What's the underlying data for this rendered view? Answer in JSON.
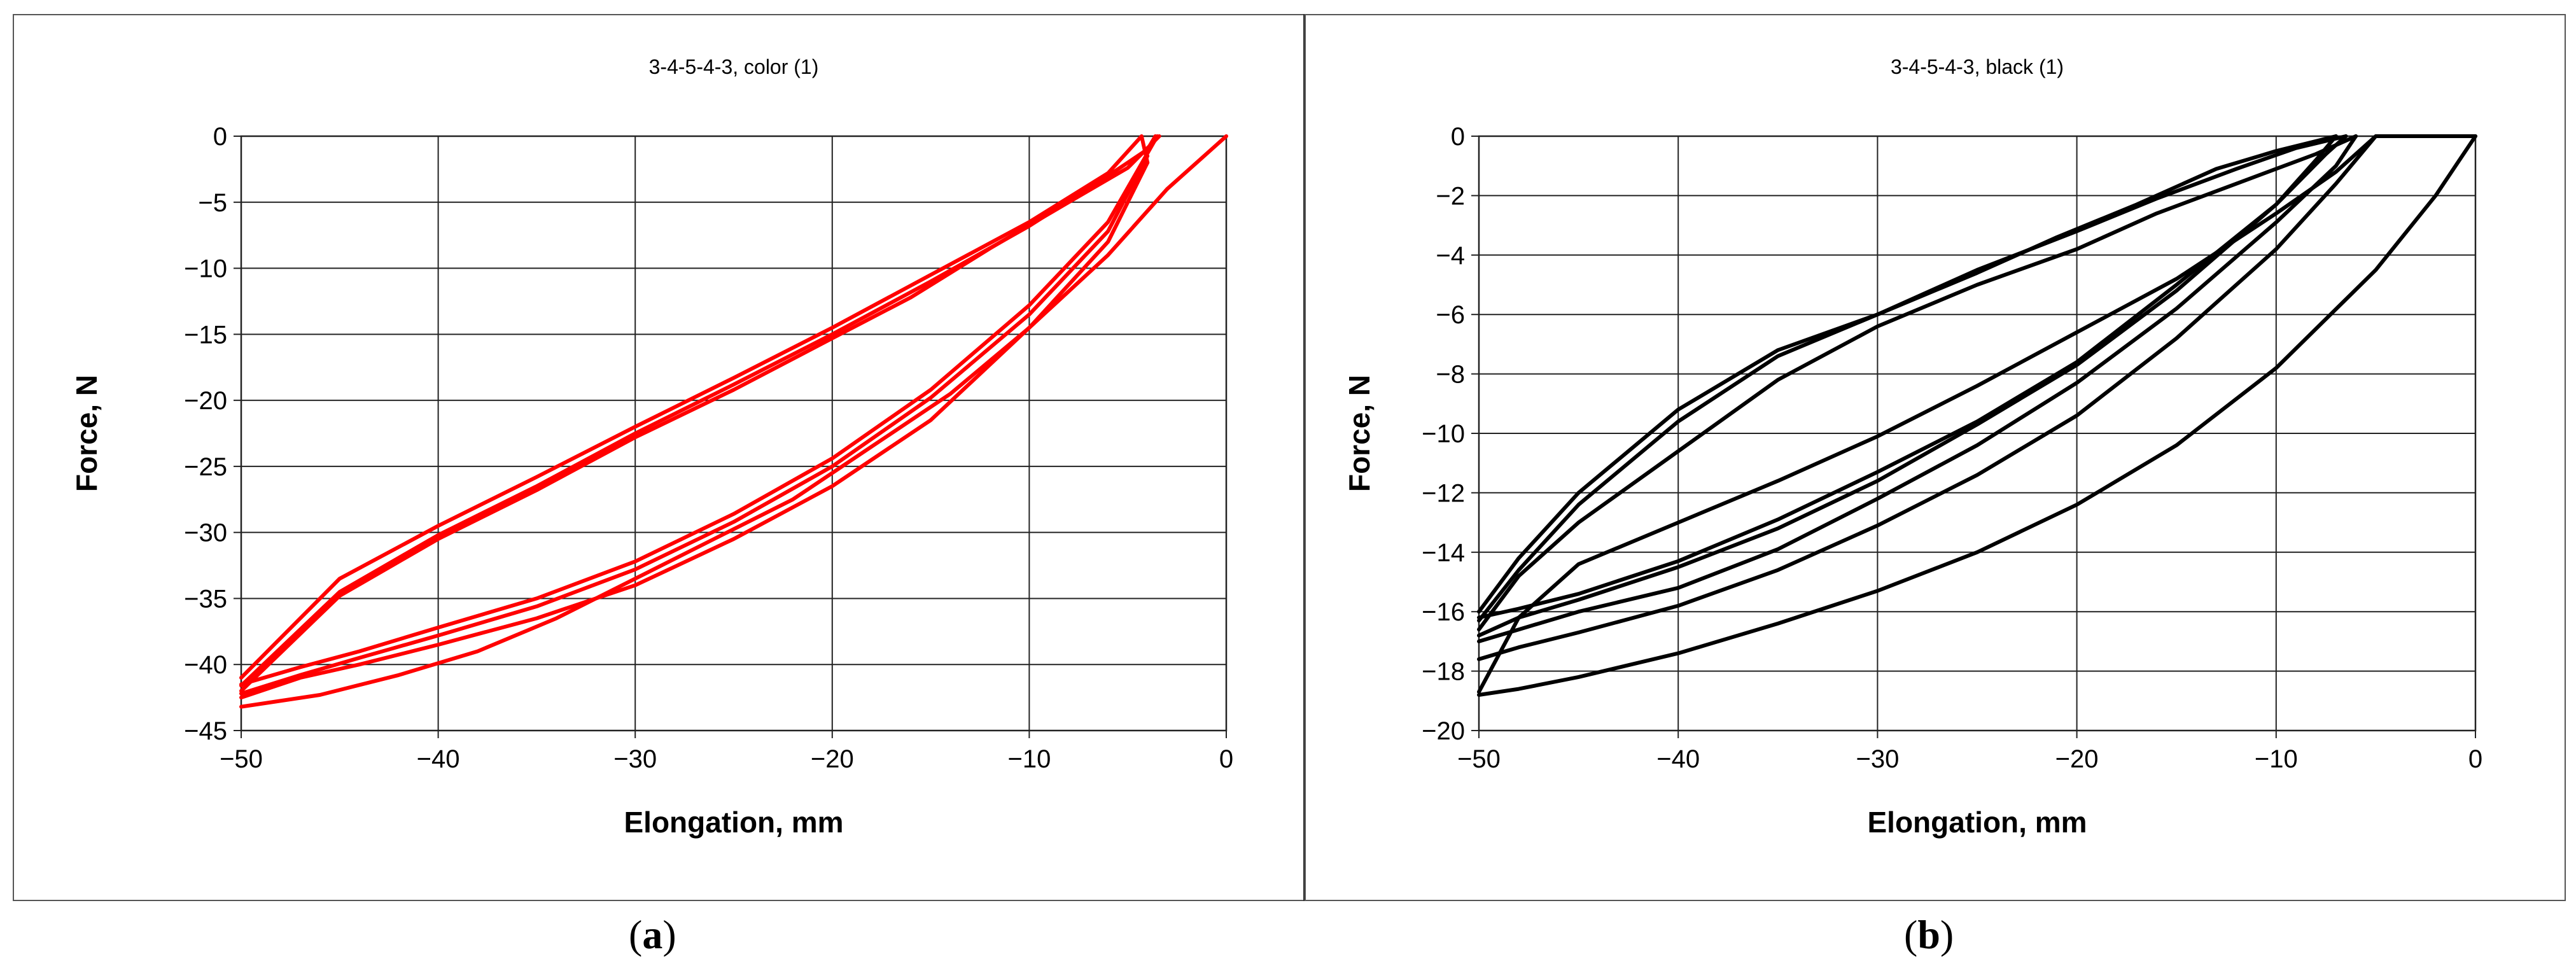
{
  "panels": {
    "a": {
      "label_open": "(",
      "label_letter": "a",
      "label_close": ")"
    },
    "b": {
      "label_open": "(",
      "label_letter": "b",
      "label_close": ")"
    }
  },
  "chart_data": [
    {
      "type": "line",
      "title": "3-4-5-4-3, color (1)",
      "xlabel": "Elongation, mm",
      "ylabel": "Force, N",
      "xlim": [
        -50,
        0
      ],
      "ylim": [
        -45,
        0
      ],
      "xticks": [
        -50,
        -40,
        -30,
        -20,
        -10,
        0
      ],
      "yticks": [
        0,
        -5,
        -10,
        -15,
        -20,
        -25,
        -30,
        -35,
        -40,
        -45
      ],
      "xtick_labels": [
        "−50",
        "−40",
        "−30",
        "−20",
        "−10",
        "0"
      ],
      "ytick_labels": [
        "0",
        "−5",
        "−10",
        "−15",
        "−20",
        "−25",
        "−30",
        "−35",
        "−40",
        "−45"
      ],
      "grid": true,
      "line_color": "#ff0000",
      "series": [
        {
          "x": [
            0,
            -3,
            -6,
            -10,
            -14,
            -18,
            -22,
            -26,
            -30,
            -34,
            -38,
            -42,
            -46,
            -50
          ],
          "y": [
            0,
            -4,
            -9,
            -14.5,
            -19.5,
            -23.5,
            -27.5,
            -30.5,
            -33.5,
            -36.5,
            -39,
            -40.8,
            -42.3,
            -43.2
          ]
        },
        {
          "x": [
            -50,
            -47,
            -44,
            -40,
            -35,
            -30,
            -25,
            -20,
            -15,
            -10,
            -6,
            -4
          ],
          "y": [
            -42.5,
            -41,
            -40,
            -38.5,
            -36.5,
            -34,
            -30.5,
            -26.5,
            -21.5,
            -14.5,
            -8,
            -2
          ]
        },
        {
          "x": [
            -4,
            -4.3,
            -6,
            -10,
            -15,
            -20,
            -25,
            -30,
            -35,
            -40,
            -45,
            -50
          ],
          "y": [
            -2,
            0,
            -2.8,
            -6.5,
            -10.5,
            -14.5,
            -18.3,
            -22,
            -25.8,
            -29.5,
            -33.5,
            -41
          ]
        },
        {
          "x": [
            -50,
            -47,
            -44,
            -40,
            -35,
            -30,
            -25,
            -20,
            -15,
            -10,
            -6,
            -4
          ],
          "y": [
            -42.2,
            -40.8,
            -39.5,
            -37.8,
            -35.6,
            -32.8,
            -29.2,
            -25,
            -19.8,
            -13.5,
            -7.2,
            -1.5
          ]
        },
        {
          "x": [
            -3.6,
            -4,
            -6,
            -10,
            -15,
            -20,
            -25,
            -30,
            -35,
            -40,
            -45,
            -50
          ],
          "y": [
            0,
            -1,
            -3,
            -6.8,
            -11,
            -15,
            -18.8,
            -22.5,
            -26.5,
            -30.2,
            -34.5,
            -41.6
          ]
        },
        {
          "x": [
            -50,
            -47,
            -44,
            -40,
            -35,
            -30,
            -25,
            -20,
            -15,
            -10,
            -6,
            -3.5
          ],
          "y": [
            -41.5,
            -40.2,
            -39,
            -37.2,
            -35,
            -32.2,
            -28.6,
            -24.4,
            -19.2,
            -12.8,
            -6.5,
            0
          ]
        },
        {
          "x": [
            -3.4,
            -5,
            -8,
            -12,
            -16,
            -20,
            -25,
            -30,
            -35,
            -40,
            -45,
            -50
          ],
          "y": [
            0,
            -2.4,
            -5,
            -8.5,
            -12.2,
            -15.3,
            -19.2,
            -22.8,
            -26.8,
            -30.5,
            -34.8,
            -42
          ]
        }
      ]
    },
    {
      "type": "line",
      "title": "3-4-5-4-3, black (1)",
      "xlabel": "Elongation, mm",
      "ylabel": "Force, N",
      "xlim": [
        -50,
        0
      ],
      "ylim": [
        -20,
        0
      ],
      "xticks": [
        -50,
        -40,
        -30,
        -20,
        -10,
        0
      ],
      "yticks": [
        0,
        -2,
        -4,
        -6,
        -8,
        -10,
        -12,
        -14,
        -16,
        -18,
        -20
      ],
      "xtick_labels": [
        "−50",
        "−40",
        "−30",
        "−20",
        "−10",
        "0"
      ],
      "ytick_labels": [
        "0",
        "−2",
        "−4",
        "−6",
        "−8",
        "−10",
        "−12",
        "−14",
        "−16",
        "−18",
        "−20"
      ],
      "grid": true,
      "line_color": "#000000",
      "series": [
        {
          "x": [
            0,
            -2,
            -5,
            -10,
            -15,
            -20,
            -25,
            -30,
            -35,
            -40,
            -45,
            -48,
            -50
          ],
          "y": [
            0,
            -2,
            -4.5,
            -7.8,
            -10.4,
            -12.4,
            -14,
            -15.3,
            -16.4,
            -17.4,
            -18.2,
            -18.6,
            -18.8
          ]
        },
        {
          "x": [
            -50,
            -48,
            -45,
            -40,
            -35,
            -30,
            -25,
            -20,
            -15,
            -10,
            -7,
            -5,
            0
          ],
          "y": [
            -17.6,
            -17.2,
            -16.7,
            -15.8,
            -14.6,
            -13.1,
            -11.4,
            -9.4,
            -6.8,
            -3.8,
            -1.6,
            0,
            0
          ]
        },
        {
          "x": [
            -5,
            -7,
            -10,
            -15,
            -20,
            -25,
            -30,
            -35,
            -40,
            -45,
            -48,
            -50
          ],
          "y": [
            0,
            -1.2,
            -2.6,
            -4.8,
            -6.6,
            -8.4,
            -10.1,
            -11.6,
            -13,
            -14.4,
            -16.2,
            -18.7
          ]
        },
        {
          "x": [
            -50,
            -48,
            -45,
            -40,
            -35,
            -30,
            -25,
            -20,
            -15,
            -10,
            -7,
            -6
          ],
          "y": [
            -17,
            -16.6,
            -16,
            -15.2,
            -13.9,
            -12.2,
            -10.4,
            -8.3,
            -5.8,
            -2.9,
            -1,
            0
          ]
        },
        {
          "x": [
            -6,
            -8,
            -12,
            -16,
            -20,
            -25,
            -30,
            -35,
            -40,
            -45,
            -48,
            -50
          ],
          "y": [
            0,
            -0.6,
            -1.6,
            -2.6,
            -3.8,
            -5,
            -6.4,
            -8.2,
            -10.6,
            -13,
            -14.8,
            -16.6
          ]
        },
        {
          "x": [
            -50,
            -48,
            -45,
            -40,
            -35,
            -30,
            -25,
            -20,
            -15,
            -10,
            -7.5,
            -6.5
          ],
          "y": [
            -16.8,
            -16.2,
            -15.6,
            -14.5,
            -13.2,
            -11.6,
            -9.7,
            -7.7,
            -5.2,
            -2.3,
            -0.6,
            0
          ]
        },
        {
          "x": [
            -6.5,
            -9,
            -12,
            -16,
            -20,
            -25,
            -30,
            -35,
            -40,
            -45,
            -48,
            -50
          ],
          "y": [
            0,
            -0.4,
            -1.1,
            -2.1,
            -3.2,
            -4.5,
            -6,
            -7.4,
            -9.6,
            -12.4,
            -14.6,
            -16.3
          ]
        },
        {
          "x": [
            -50,
            -48,
            -45,
            -40,
            -35,
            -30,
            -25,
            -20,
            -15,
            -10,
            -8,
            -7
          ],
          "y": [
            -16.2,
            -15.9,
            -15.4,
            -14.3,
            -12.9,
            -11.3,
            -9.6,
            -7.6,
            -5,
            -2.3,
            -0.8,
            0
          ]
        },
        {
          "x": [
            -7,
            -10,
            -13,
            -17,
            -21,
            -25,
            -30,
            -35,
            -40,
            -45,
            -48,
            -50
          ],
          "y": [
            0,
            -0.5,
            -1.1,
            -2.3,
            -3.4,
            -4.6,
            -6,
            -7.2,
            -9.2,
            -12,
            -14.2,
            -16
          ]
        }
      ]
    }
  ]
}
